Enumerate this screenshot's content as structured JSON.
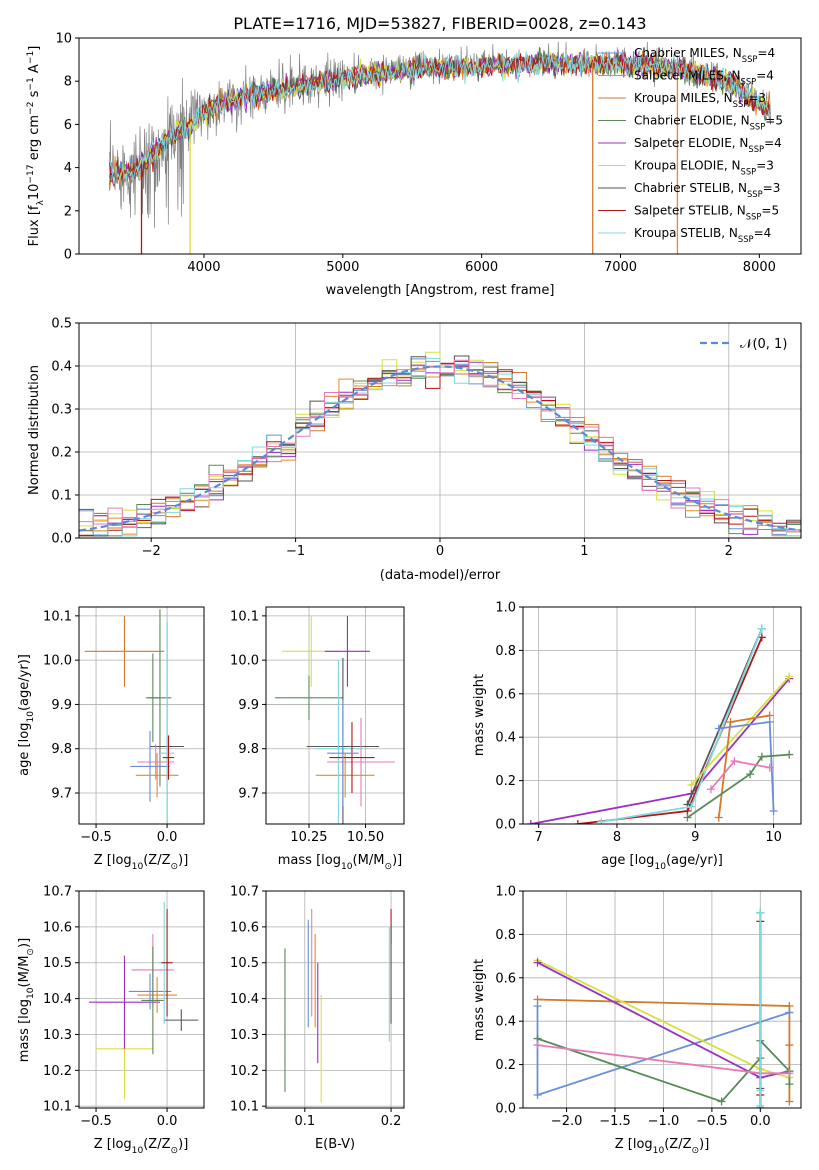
{
  "figure_title": "PLATE=1716, MJD=53827, FIBERID=0028, z=0.143",
  "colors": {
    "Chabrier MILES": "#6a8fd8",
    "Salpeter MILES": "#e88a2a",
    "Kroupa MILES": "#d07a2a",
    "Chabrier ELODIE": "#5a8a5a",
    "Salpeter ELODIE": "#9b30c0",
    "Kroupa ELODIE": "#d8e040",
    "Chabrier STELIB": "#555555",
    "Salpeter STELIB": "#b01818",
    "Kroupa STELIB": "#80d8e0",
    "pink": "#e87ab8",
    "data": "#808080",
    "normal": "#5b8ad8"
  },
  "chart_data": [
    {
      "type": "line",
      "xlabel": "wavelength [Angstrom, rest frame]",
      "ylabel": "Flux [f",
      "ylabel_parts": [
        "Flux [f",
        "λ",
        "10",
        "−17",
        " erg cm",
        "−2",
        " s",
        "−1",
        " A",
        "−1",
        "]"
      ],
      "xlim": [
        3100,
        8300
      ],
      "ylim": [
        0,
        10
      ],
      "xticks": [
        "4000",
        "5000",
        "6000",
        "7000",
        "8000"
      ],
      "yticks": [
        "0",
        "2",
        "4",
        "6",
        "8",
        "10"
      ],
      "legend_position": "right",
      "legend": [
        {
          "label": "Chabrier MILES, N",
          "sub": "SSP",
          "tail": "=4",
          "color": "Chabrier MILES"
        },
        {
          "label": "Salpeter MILES, N",
          "sub": "SSP",
          "tail": "=4",
          "color": "Salpeter MILES"
        },
        {
          "label": "Kroupa MILES, N",
          "sub": "SSP",
          "tail": "=3",
          "color": "Kroupa MILES"
        },
        {
          "label": "Chabrier ELODIE, N",
          "sub": "SSP",
          "tail": "=5",
          "color": "Chabrier ELODIE"
        },
        {
          "label": "Salpeter ELODIE, N",
          "sub": "SSP",
          "tail": "=4",
          "color": "Salpeter ELODIE"
        },
        {
          "label": "Kroupa ELODIE, N",
          "sub": "SSP",
          "tail": "=3",
          "color": "Kroupa ELODIE"
        },
        {
          "label": "Chabrier STELIB, N",
          "sub": "SSP",
          "tail": "=3",
          "color": "Chabrier STELIB"
        },
        {
          "label": "Salpeter STELIB, N",
          "sub": "SSP",
          "tail": "=5",
          "color": "Salpeter STELIB"
        },
        {
          "label": "Kroupa STELIB, N",
          "sub": "SSP",
          "tail": "=4",
          "color": "Kroupa STELIB"
        }
      ],
      "continuum": {
        "x": [
          3320,
          3400,
          3500,
          3600,
          3700,
          3800,
          3900,
          4000,
          4100,
          4300,
          4500,
          4700,
          5000,
          5300,
          5600,
          6000,
          6500,
          7000,
          7400,
          7800,
          8100
        ],
        "y": [
          3.8,
          3.9,
          3.9,
          4.5,
          5.2,
          5.7,
          6.0,
          6.6,
          7.0,
          7.4,
          7.7,
          7.9,
          8.2,
          8.5,
          8.7,
          8.8,
          8.9,
          8.9,
          8.7,
          8.0,
          6.6
        ]
      },
      "drops": [
        {
          "x": 3550,
          "color": "Salpeter STELIB"
        },
        {
          "x": 3900,
          "color": "Kroupa ELODIE"
        },
        {
          "x": 6800,
          "color": "Kroupa MILES"
        },
        {
          "x": 7410,
          "color": "Salpeter MILES"
        }
      ]
    },
    {
      "type": "histogram",
      "xlabel": "(data-model)/error",
      "ylabel": "Normed distribution",
      "xlim": [
        -2.5,
        2.5
      ],
      "ylim": [
        0,
        0.5
      ],
      "xticks": [
        "−2",
        "−1",
        "0",
        "1",
        "2"
      ],
      "yticks": [
        "0.0",
        "0.1",
        "0.2",
        "0.3",
        "0.4",
        "0.5"
      ],
      "legend_position": "top-right",
      "legend_label": "𝒩(0, 1)",
      "bin_width": 0.1,
      "model_colors": [
        "Chabrier MILES",
        "Salpeter MILES",
        "Kroupa MILES",
        "Chabrier ELODIE",
        "Salpeter ELODIE",
        "Kroupa ELODIE",
        "Chabrier STELIB",
        "Salpeter STELIB",
        "Kroupa STELIB",
        "pink"
      ]
    },
    {
      "type": "errorbar",
      "xlabel": "Z [log",
      "xlabel_parts": [
        "Z [log",
        "10",
        "(Z/Z",
        "⊙",
        ")]"
      ],
      "ylabel_parts": [
        "age  [log",
        "10",
        "(age/yr)]"
      ],
      "xlim": [
        -0.62,
        0.26
      ],
      "ylim": [
        9.63,
        10.12
      ],
      "xticks": [
        -0.5,
        0.0
      ],
      "xtick_labels": [
        "−0.5",
        "0.0"
      ],
      "yticks": [
        9.7,
        9.8,
        9.9,
        10.0,
        10.1
      ],
      "ytick_labels": [
        "9.7",
        "9.8",
        "9.9",
        "10.0",
        "10.1"
      ],
      "points": [
        {
          "x": -0.3,
          "y": 10.02,
          "xerr": 0.28,
          "yerr": 0.08,
          "color": "Kroupa MILES"
        },
        {
          "x": -0.05,
          "y": 9.915,
          "xerr": 0.08,
          "yerr": 0.2,
          "color": "Chabrier ELODIE"
        },
        {
          "x": -0.1,
          "y": 9.915,
          "xerr": 0.05,
          "yerr": 0.1,
          "color": "Chabrier ELODIE"
        },
        {
          "x": 0.0,
          "y": 9.805,
          "xerr": 0.12,
          "yerr": 0.28,
          "color": "Chabrier STELIB"
        },
        {
          "x": -0.08,
          "y": 9.77,
          "xerr": 0.13,
          "yerr": 0.04,
          "color": "pink"
        },
        {
          "x": -0.12,
          "y": 9.76,
          "xerr": 0.14,
          "yerr": 0.08,
          "color": "Chabrier MILES"
        },
        {
          "x": -0.07,
          "y": 9.74,
          "xerr": 0.15,
          "yerr": 0.05,
          "color": "Salpeter MILES"
        },
        {
          "x": 0.0,
          "y": 9.79,
          "xerr": 0.05,
          "yerr": 0.3,
          "color": "Kroupa STELIB"
        },
        {
          "x": 0.01,
          "y": 9.78,
          "xerr": 0.04,
          "yerr": 0.05,
          "color": "Salpeter STELIB"
        }
      ]
    },
    {
      "type": "errorbar",
      "xlabel_parts": [
        "mass [log",
        "10",
        "(M/M",
        "⊙",
        ")]"
      ],
      "ylabel_parts": [],
      "xlim": [
        10.06,
        10.67
      ],
      "ylim": [
        9.63,
        10.12
      ],
      "xticks": [
        10.25,
        10.5
      ],
      "xtick_labels": [
        "10.25",
        "10.50"
      ],
      "yticks": [
        9.7,
        9.8,
        9.9,
        10.0,
        10.1
      ],
      "ytick_labels": [
        "9.7",
        "9.8",
        "9.9",
        "10.0",
        "10.1"
      ],
      "points": [
        {
          "x": 10.26,
          "y": 10.02,
          "xerr": 0.13,
          "yerr": 0.08,
          "color": "Kroupa ELODIE"
        },
        {
          "x": 10.42,
          "y": 10.02,
          "xerr": 0.1,
          "yerr": 0.08,
          "color": "Salpeter ELODIE"
        },
        {
          "x": 10.25,
          "y": 9.915,
          "xerr": 0.15,
          "yerr": 0.05,
          "color": "Chabrier ELODIE"
        },
        {
          "x": 10.4,
          "y": 9.805,
          "xerr": 0.16,
          "yerr": 0.2,
          "color": "Chabrier STELIB"
        },
        {
          "x": 10.48,
          "y": 9.77,
          "xerr": 0.15,
          "yerr": 0.1,
          "color": "pink"
        },
        {
          "x": 10.41,
          "y": 9.74,
          "xerr": 0.13,
          "yerr": 0.05,
          "color": "Salpeter MILES"
        },
        {
          "x": 10.38,
          "y": 9.8,
          "xerr": 0.1,
          "yerr": 0.2,
          "color": "Kroupa STELIB"
        },
        {
          "x": 10.44,
          "y": 9.78,
          "xerr": 0.1,
          "yerr": 0.08,
          "color": "Salpeter STELIB"
        },
        {
          "x": 10.4,
          "y": 9.79,
          "xerr": 0.07,
          "yerr": 0.12,
          "color": "Chabrier MILES"
        }
      ]
    },
    {
      "type": "line",
      "xlabel_parts": [
        "age  [log",
        "10",
        "(age/yr)]"
      ],
      "ylabel": "mass weight",
      "xlim": [
        6.8,
        10.35
      ],
      "ylim": [
        0,
        1
      ],
      "xticks": [
        7,
        8,
        9,
        10
      ],
      "xtick_labels": [
        "7",
        "8",
        "9",
        "10"
      ],
      "yticks": [
        0,
        0.2,
        0.4,
        0.6,
        0.8,
        1.0
      ],
      "ytick_labels": [
        "0.0",
        "0.2",
        "0.4",
        "0.6",
        "0.8",
        "1.0"
      ],
      "series": [
        {
          "color": "Salpeter ELODIE",
          "x": [
            6.9,
            8.95,
            10.2
          ],
          "y": [
            0.0,
            0.14,
            0.67
          ]
        },
        {
          "color": "Salpeter STELIB",
          "x": [
            7.5,
            8.9,
            9.85
          ],
          "y": [
            0.0,
            0.06,
            0.86
          ]
        },
        {
          "color": "Chabrier STELIB",
          "x": [
            8.9,
            9.85
          ],
          "y": [
            0.09,
            0.9
          ]
        },
        {
          "color": "Kroupa STELIB",
          "x": [
            7.8,
            8.95,
            9.85
          ],
          "y": [
            0.01,
            0.08,
            0.9
          ]
        },
        {
          "color": "Kroupa ELODIE",
          "x": [
            8.95,
            10.2
          ],
          "y": [
            0.18,
            0.68
          ]
        },
        {
          "color": "Kroupa MILES",
          "x": [
            9.3,
            9.45,
            9.95
          ],
          "y": [
            0.03,
            0.47,
            0.5
          ]
        },
        {
          "color": "Chabrier MILES",
          "x": [
            9.3,
            9.95,
            10.0
          ],
          "y": [
            0.44,
            0.47,
            0.06
          ]
        },
        {
          "color": "Chabrier ELODIE",
          "x": [
            8.9,
            9.7,
            9.85,
            10.2
          ],
          "y": [
            0.03,
            0.23,
            0.31,
            0.32
          ]
        },
        {
          "color": "pink",
          "x": [
            9.2,
            9.5,
            9.95
          ],
          "y": [
            0.16,
            0.29,
            0.26
          ]
        }
      ]
    },
    {
      "type": "errorbar",
      "xlabel_parts": [
        "Z [log",
        "10",
        "(Z/Z",
        "⊙",
        ")]"
      ],
      "ylabel_parts": [
        "mass [log",
        "10",
        "(M/M",
        "⊙",
        ")]"
      ],
      "xlim": [
        -0.62,
        0.26
      ],
      "ylim": [
        10.095,
        10.7
      ],
      "xticks": [
        -0.5,
        0.0
      ],
      "xtick_labels": [
        "−0.5",
        "0.0"
      ],
      "yticks": [
        10.1,
        10.2,
        10.3,
        10.4,
        10.5,
        10.6,
        10.7
      ],
      "ytick_labels": [
        "10.1",
        "10.2",
        "10.3",
        "10.4",
        "10.5",
        "10.6",
        "10.7"
      ],
      "points": [
        {
          "x": -0.3,
          "y": 10.26,
          "xerr": 0.2,
          "yerr": 0.14,
          "color": "Kroupa ELODIE"
        },
        {
          "x": -0.3,
          "y": 10.39,
          "xerr": 0.25,
          "yerr": 0.13,
          "color": "Salpeter ELODIE"
        },
        {
          "x": -0.1,
          "y": 10.48,
          "xerr": 0.15,
          "yerr": 0.1,
          "color": "pink"
        },
        {
          "x": -0.12,
          "y": 10.42,
          "xerr": 0.15,
          "yerr": 0.05,
          "color": "Chabrier MILES"
        },
        {
          "x": -0.07,
          "y": 10.41,
          "xerr": 0.14,
          "yerr": 0.05,
          "color": "Salpeter MILES"
        },
        {
          "x": -0.1,
          "y": 10.395,
          "xerr": 0.08,
          "yerr": 0.15,
          "color": "Chabrier ELODIE"
        },
        {
          "x": 0.1,
          "y": 10.34,
          "xerr": 0.12,
          "yerr": 0.03,
          "color": "Chabrier STELIB"
        },
        {
          "x": -0.02,
          "y": 10.5,
          "xerr": 0.04,
          "yerr": 0.17,
          "color": "Kroupa STELIB"
        },
        {
          "x": 0.0,
          "y": 10.5,
          "xerr": 0.04,
          "yerr": 0.15,
          "color": "Salpeter STELIB"
        }
      ]
    },
    {
      "type": "errorbar",
      "xlabel": "E(B-V)",
      "ylabel_parts": [],
      "xlim": [
        0.055,
        0.215
      ],
      "ylim": [
        10.095,
        10.7
      ],
      "xticks": [
        0.1,
        0.2
      ],
      "xtick_labels": [
        "0.1",
        "0.2"
      ],
      "yticks": [
        10.1,
        10.2,
        10.3,
        10.4,
        10.5,
        10.6,
        10.7
      ],
      "ytick_labels": [
        "10.1",
        "10.2",
        "10.3",
        "10.4",
        "10.5",
        "10.6",
        "10.7"
      ],
      "points": [
        {
          "x": 0.077,
          "y": 10.34,
          "xerr": 0,
          "yerr": 0.2,
          "color": "Chabrier ELODIE"
        },
        {
          "x": 0.104,
          "y": 10.47,
          "xerr": 0,
          "yerr": 0.15,
          "color": "Chabrier MILES"
        },
        {
          "x": 0.108,
          "y": 10.5,
          "xerr": 0,
          "yerr": 0.15,
          "color": "pink"
        },
        {
          "x": 0.112,
          "y": 10.45,
          "xerr": 0,
          "yerr": 0.13,
          "color": "Salpeter MILES"
        },
        {
          "x": 0.115,
          "y": 10.36,
          "xerr": 0,
          "yerr": 0.14,
          "color": "Salpeter ELODIE"
        },
        {
          "x": 0.119,
          "y": 10.26,
          "xerr": 0,
          "yerr": 0.15,
          "color": "Kroupa ELODIE"
        },
        {
          "x": 0.198,
          "y": 10.44,
          "xerr": 0,
          "yerr": 0.16,
          "color": "Kroupa STELIB"
        },
        {
          "x": 0.2,
          "y": 10.6,
          "xerr": 0,
          "yerr": 0.05,
          "color": "Salpeter STELIB"
        },
        {
          "x": 0.2,
          "y": 10.47,
          "xerr": 0,
          "yerr": 0.14,
          "color": "Chabrier STELIB"
        }
      ]
    },
    {
      "type": "line",
      "xlabel_parts": [
        "Z [log",
        "10",
        "(Z/Z",
        "⊙",
        ")]"
      ],
      "ylabel": "mass weight",
      "xlim": [
        -2.45,
        0.42
      ],
      "ylim": [
        0,
        1
      ],
      "xticks": [
        -2.0,
        -1.5,
        -1.0,
        -0.5,
        0.0
      ],
      "xtick_labels": [
        "−2.0",
        "−1.5",
        "−1.0",
        "−0.5",
        "0.0"
      ],
      "yticks": [
        0,
        0.2,
        0.4,
        0.6,
        0.8,
        1.0
      ],
      "ytick_labels": [
        "0.0",
        "0.2",
        "0.4",
        "0.6",
        "0.8",
        "1.0"
      ],
      "series": [
        {
          "color": "Kroupa MILES",
          "x": [
            -2.3,
            0.3,
            0.3,
            0.3
          ],
          "y": [
            0.5,
            0.47,
            0.29,
            0.03
          ]
        },
        {
          "color": "Chabrier MILES",
          "x": [
            -2.3,
            -2.3,
            0.3,
            0.3
          ],
          "y": [
            0.47,
            0.06,
            0.44,
            0.44
          ]
        },
        {
          "color": "Kroupa ELODIE",
          "x": [
            -2.3,
            0.0,
            0.3
          ],
          "y": [
            0.68,
            0.18,
            0.14
          ]
        },
        {
          "color": "Salpeter ELODIE",
          "x": [
            -2.3,
            0.0,
            0.3
          ],
          "y": [
            0.67,
            0.14,
            0.17
          ]
        },
        {
          "color": "Chabrier ELODIE",
          "x": [
            -2.3,
            -0.4,
            0.0,
            0.0,
            0.3,
            0.3
          ],
          "y": [
            0.32,
            0.03,
            0.23,
            0.31,
            0.17,
            0.11
          ]
        },
        {
          "color": "pink",
          "x": [
            -2.3,
            0.0,
            0.3
          ],
          "y": [
            0.29,
            0.16,
            0.16
          ]
        },
        {
          "color": "Chabrier STELIB",
          "x": [
            0.0,
            0.0,
            0.0
          ],
          "y": [
            0.9,
            0.09,
            0.0
          ]
        },
        {
          "color": "Salpeter STELIB",
          "x": [
            0.0,
            0.0,
            0.0
          ],
          "y": [
            0.86,
            0.06,
            0.0
          ]
        },
        {
          "color": "Kroupa STELIB",
          "x": [
            0.0,
            0.0,
            0.0
          ],
          "y": [
            0.9,
            0.08,
            0.01
          ]
        }
      ]
    }
  ]
}
